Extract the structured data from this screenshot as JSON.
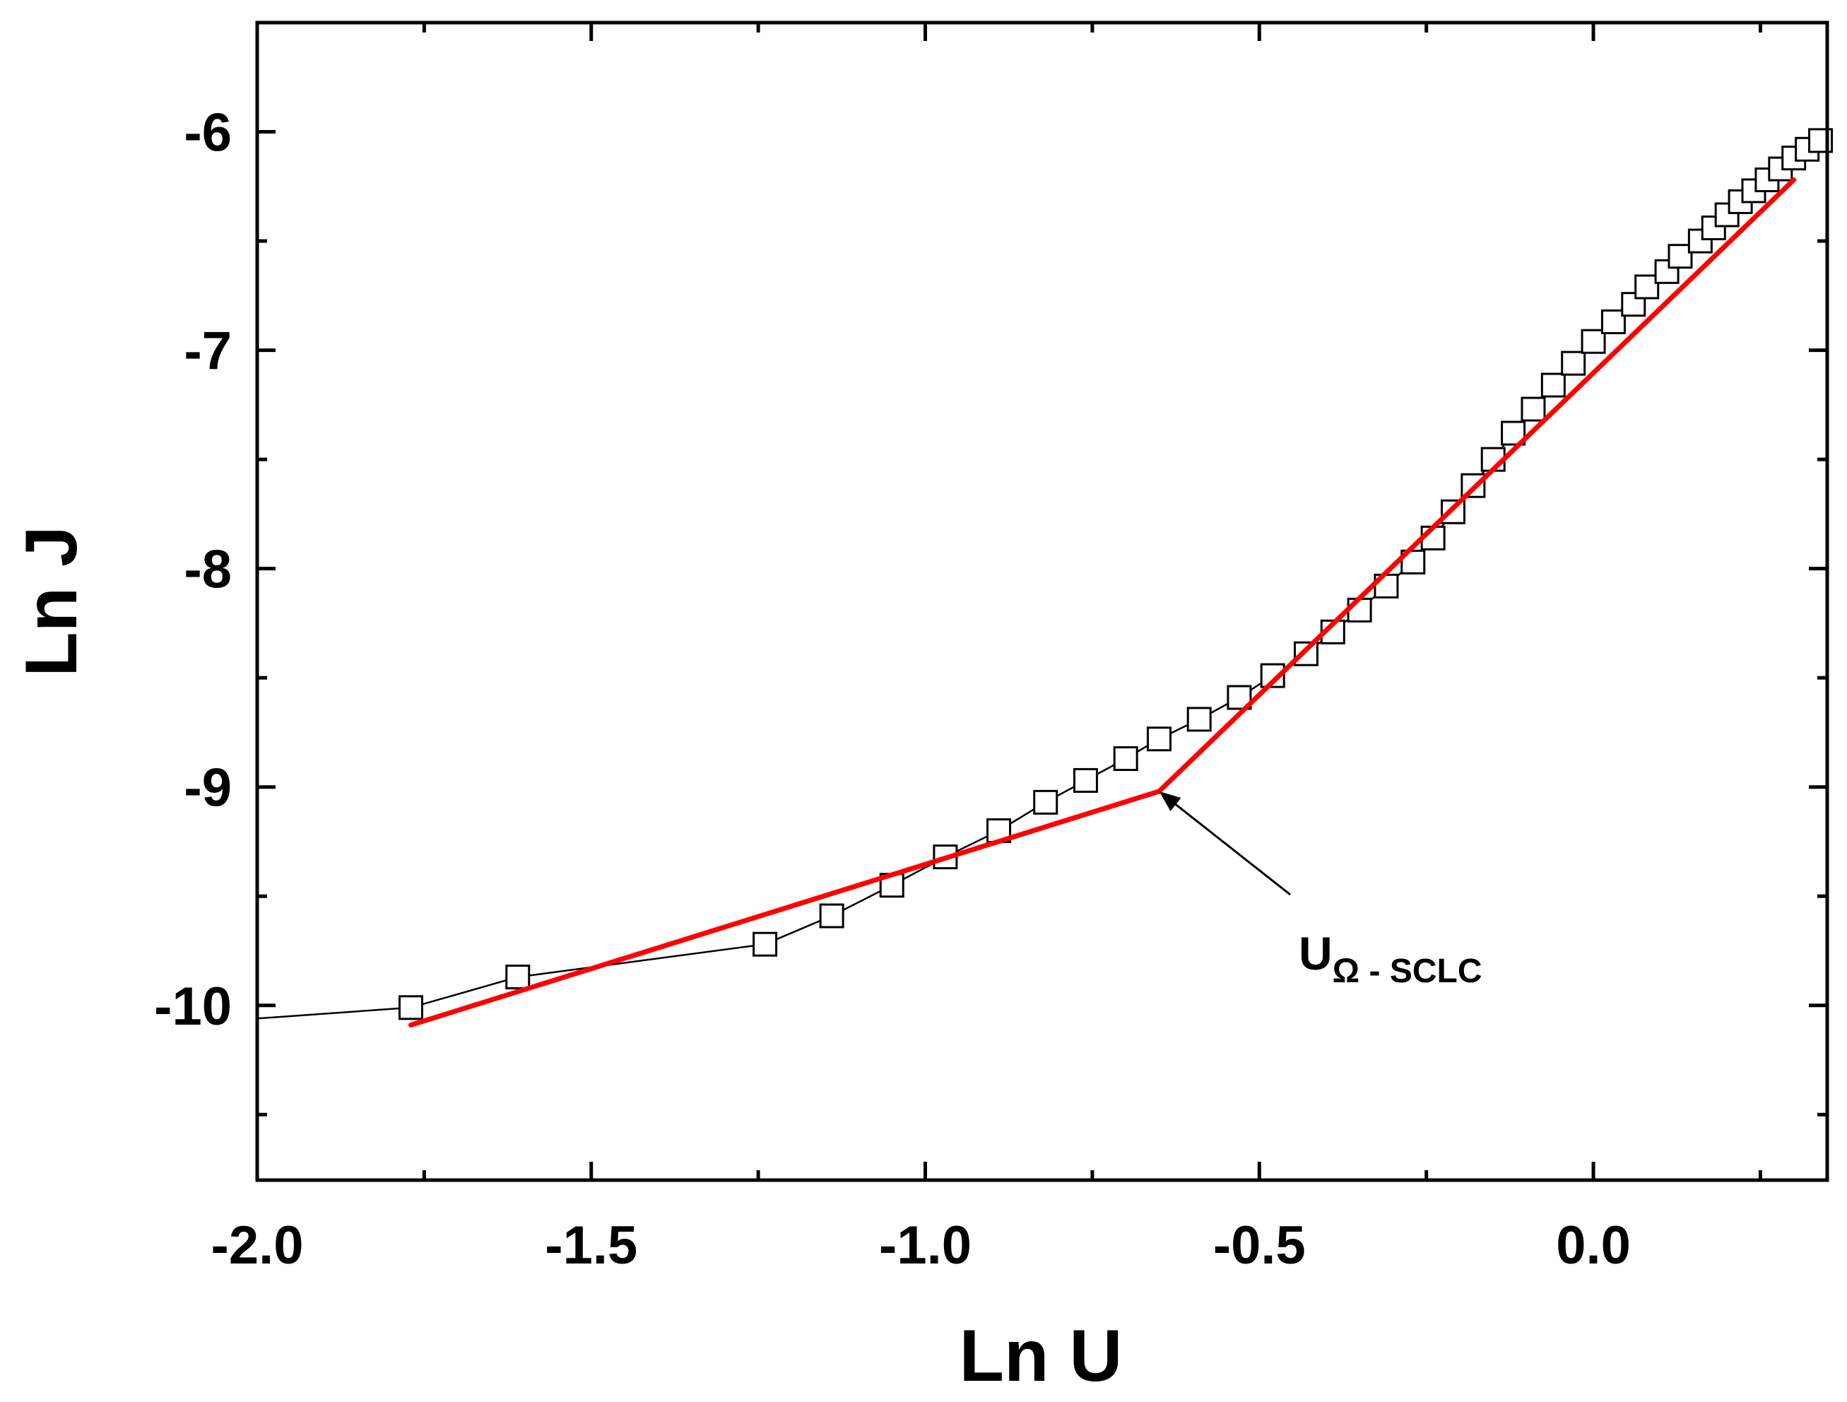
{
  "chart_data": {
    "type": "scatter",
    "xlabel": "Ln U",
    "ylabel": "Ln J",
    "xlim": [
      -2.0,
      0.35
    ],
    "ylim": [
      -10.8,
      -5.5
    ],
    "xticks": [
      -2.0,
      -1.5,
      -1.0,
      -0.5,
      0.0
    ],
    "xtick_labels": [
      "-2.0",
      "-1.5",
      "-1.0",
      "-0.5",
      "0.0"
    ],
    "xminor": [
      -1.75,
      -1.25,
      -0.75,
      -0.25,
      0.25
    ],
    "yticks": [
      -10,
      -9,
      -8,
      -7,
      -6
    ],
    "ytick_labels": [
      "-10",
      "-9",
      "-8",
      "-7",
      "-6"
    ],
    "yminor": [
      -10.5,
      -9.5,
      -8.5,
      -7.5,
      -6.5
    ],
    "grid": false,
    "series": [
      {
        "marker": "open-square",
        "color": "#000000",
        "line": true,
        "x": [
          -2.0,
          -1.77,
          -1.61,
          -1.24,
          -1.14,
          -1.05,
          -0.97,
          -0.89,
          -0.82,
          -0.76,
          -0.7,
          -0.65,
          -0.59,
          -0.53,
          -0.48,
          -0.43,
          -0.39,
          -0.35,
          -0.31,
          -0.27,
          -0.24,
          -0.21,
          -0.18,
          -0.15,
          -0.12,
          -0.09,
          -0.06,
          -0.03,
          0.0,
          0.03,
          0.06,
          0.08,
          0.11,
          0.13,
          0.16,
          0.18,
          0.2,
          0.22,
          0.24,
          0.26,
          0.28,
          0.3,
          0.32,
          0.34
        ],
        "y": [
          -10.06,
          -10.01,
          -9.87,
          -9.72,
          -9.59,
          -9.45,
          -9.32,
          -9.2,
          -9.07,
          -8.97,
          -8.87,
          -8.78,
          -8.69,
          -8.59,
          -8.49,
          -8.39,
          -8.29,
          -8.19,
          -8.08,
          -7.97,
          -7.86,
          -7.74,
          -7.62,
          -7.5,
          -7.38,
          -7.27,
          -7.16,
          -7.06,
          -6.96,
          -6.87,
          -6.79,
          -6.71,
          -6.64,
          -6.57,
          -6.5,
          -6.44,
          -6.38,
          -6.32,
          -6.27,
          -6.22,
          -6.17,
          -6.12,
          -6.08,
          -6.04
        ]
      }
    ],
    "fit_lines": [
      {
        "color": "#ff0000",
        "x": [
          -1.77,
          -0.65
        ],
        "y": [
          -10.09,
          -9.02
        ]
      },
      {
        "color": "#ff0000",
        "x": [
          -0.65,
          0.3
        ],
        "y": [
          -9.02,
          -6.22
        ]
      }
    ],
    "annotation": {
      "main": "U",
      "subscript": "Ω - SCLC",
      "points_to": [
        -0.65,
        -9.02
      ]
    }
  }
}
